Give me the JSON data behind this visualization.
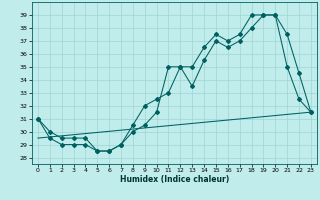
{
  "xlabel": "Humidex (Indice chaleur)",
  "bg_color": "#c0ecec",
  "grid_color": "#a0d4d4",
  "line_color": "#006060",
  "xlim": [
    -0.5,
    23.5
  ],
  "ylim": [
    27.5,
    40.0
  ],
  "yticks": [
    28,
    29,
    30,
    31,
    32,
    33,
    34,
    35,
    36,
    37,
    38,
    39
  ],
  "xticks": [
    0,
    1,
    2,
    3,
    4,
    5,
    6,
    7,
    8,
    9,
    10,
    11,
    12,
    13,
    14,
    15,
    16,
    17,
    18,
    19,
    20,
    21,
    22,
    23
  ],
  "series1_x": [
    0,
    1,
    2,
    3,
    4,
    5,
    6,
    7,
    8,
    9,
    10,
    11,
    12,
    13,
    14,
    15,
    16,
    17,
    18,
    19,
    20,
    21,
    22,
    23
  ],
  "series1_y": [
    31,
    30,
    29.5,
    29.5,
    29.5,
    28.5,
    28.5,
    29,
    30.5,
    32,
    32.5,
    33,
    35,
    35,
    36.5,
    37.5,
    37,
    37.5,
    39,
    39,
    39,
    37.5,
    34.5,
    31.5
  ],
  "series2_x": [
    0,
    1,
    2,
    3,
    4,
    5,
    6,
    7,
    8,
    9,
    10,
    11,
    12,
    13,
    14,
    15,
    16,
    17,
    18,
    19,
    20,
    21,
    22,
    23
  ],
  "series2_y": [
    31,
    29.5,
    29,
    29,
    29,
    28.5,
    28.5,
    29,
    30,
    30.5,
    31.5,
    35,
    35,
    33.5,
    35.5,
    37,
    36.5,
    37,
    38,
    39,
    39,
    35,
    32.5,
    31.5
  ],
  "series3_x": [
    0,
    23
  ],
  "series3_y": [
    29.5,
    31.5
  ]
}
